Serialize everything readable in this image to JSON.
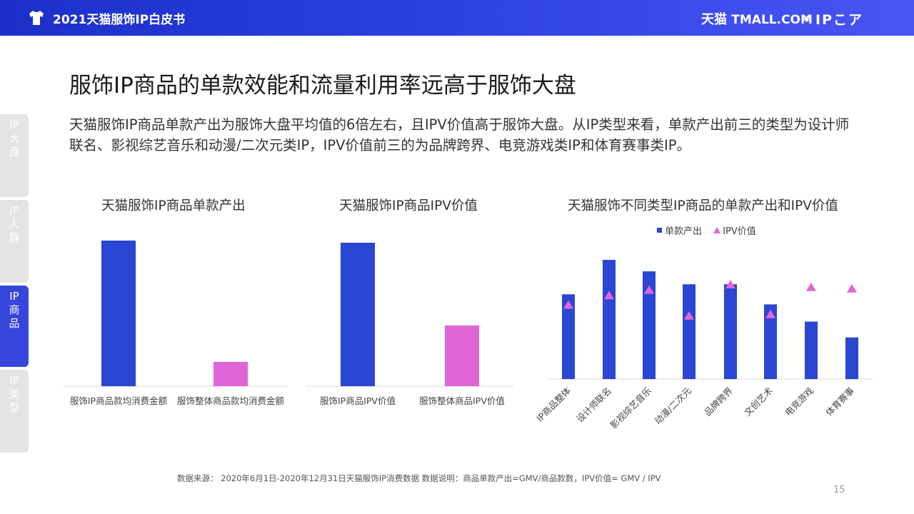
{
  "header": {
    "title": "2021天猫服饰IP白皮书",
    "brand_tmall": "天猫",
    "brand_tmall_en": "TMALL.COM",
    "brand_x": "×",
    "brand_ipx": "IPこア",
    "icons": [
      "tshirt-icon",
      "ipx-face-icon"
    ]
  },
  "sidebar": {
    "tabs": [
      {
        "label": [
          "IP",
          "大",
          "盘"
        ],
        "active": false
      },
      {
        "label": [
          "IP",
          "人",
          "群"
        ],
        "active": false
      },
      {
        "label": [
          "IP",
          "商",
          "品"
        ],
        "active": true
      },
      {
        "label": [
          "IP",
          "类",
          "型"
        ],
        "active": false
      }
    ]
  },
  "page": {
    "title": "服饰IP商品的单款效能和流量利用率远高于服饰大盘",
    "subtitle": "天猫服饰IP商品单款产出为服饰大盘平均值的6倍左右，且IPV价值高于服饰大盘。从IP类型来看，单款产出前三的类型为设计师联名、影视综艺音乐和动漫/二次元类IP，IPV价值前三的为品牌跨界、电竞游戏类IP和体育赛事类IP。",
    "footnote": "数据来源：  2020年6月1日-2020年12月31日天猫服饰IP消费数据       数据说明：商品单款产出=GMV/商品款数，IPV价值= GMV / IPV",
    "page_number": "15"
  },
  "colors": {
    "blue": "#2a46d2",
    "pink": "#e066d8",
    "header": "#2a3fe0"
  },
  "chart_data": [
    {
      "type": "bar",
      "title": "天猫服饰IP商品单款产出",
      "categories": [
        "服饰IP商品款均消费金额",
        "服饰整体商品款均消费金额"
      ],
      "values": [
        6,
        1
      ],
      "colors": [
        "#2a46d2",
        "#e066d8"
      ],
      "y_axis": "none"
    },
    {
      "type": "bar",
      "title": "天猫服饰IP商品IPV价值",
      "categories": [
        "服饰IP商品IPV价值",
        "服饰整体商品IPV价值"
      ],
      "values": [
        2.6,
        1.1
      ],
      "colors": [
        "#2a46d2",
        "#e066d8"
      ],
      "y_axis": "none"
    },
    {
      "type": "bar",
      "title": "天猫服饰不同类型IP商品的单款产出和IPV价值",
      "categories": [
        "IP商品整体",
        "设计师联名",
        "影视综艺音乐",
        "动漫/二次元",
        "品牌跨界",
        "文创艺术",
        "电竞游戏",
        "体育赛事"
      ],
      "series": [
        {
          "name": "单款产出",
          "kind": "bar",
          "color": "#2a46d2",
          "values": [
            59,
            83,
            75,
            66,
            66,
            52,
            40,
            29
          ]
        },
        {
          "name": "IPV价值",
          "kind": "marker-triangle",
          "color": "#e066d8",
          "values": [
            75,
            82,
            86,
            67,
            90,
            68,
            88,
            87
          ]
        }
      ],
      "legend": "top-center",
      "y_axis": "none"
    }
  ]
}
